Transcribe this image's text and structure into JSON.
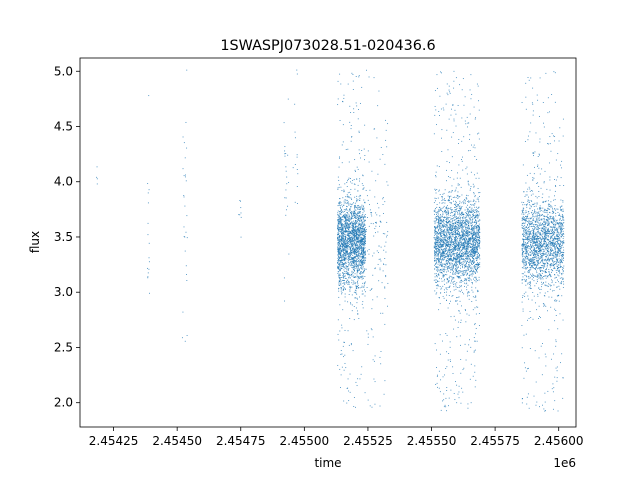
{
  "chart_data": {
    "type": "scatter",
    "title": "1SWASPJ073028.51-020436.6",
    "xlabel": "time",
    "ylabel": "flux",
    "x_offset_label": "1e6",
    "x_ticks": [
      2454250,
      2454500,
      2454750,
      2455000,
      2455250,
      2455500,
      2455750,
      2456000
    ],
    "x_tick_labels": [
      "2.45425",
      "2.45450",
      "2.45475",
      "2.45500",
      "2.45525",
      "2.45550",
      "2.45575",
      "2.45600"
    ],
    "y_ticks": [
      2.0,
      2.5,
      3.0,
      3.5,
      4.0,
      4.5,
      5.0
    ],
    "y_tick_labels": [
      "2.0",
      "2.5",
      "3.0",
      "3.5",
      "4.0",
      "4.5",
      "5.0"
    ],
    "xlim": [
      2454118,
      2456068
    ],
    "ylim": [
      1.78,
      5.12
    ],
    "marker_color": "#1f77b4",
    "grid": false,
    "clusters": [
      {
        "x_start": 2454183,
        "x_end": 2454186,
        "y_center": 4.15,
        "spread": 0.15,
        "count": 4,
        "outlier_fraction": 0.0
      },
      {
        "x_start": 2454383,
        "x_end": 2454391,
        "y_center": 3.45,
        "spread": 0.35,
        "count": 16,
        "outlier_fraction": 0.2
      },
      {
        "x_start": 2454520,
        "x_end": 2454540,
        "y_center": 3.8,
        "spread": 0.35,
        "count": 28,
        "outlier_fraction": 0.4
      },
      {
        "x_start": 2454740,
        "x_end": 2454755,
        "y_center": 3.75,
        "spread": 0.15,
        "count": 8,
        "outlier_fraction": 0.0
      },
      {
        "x_start": 2454920,
        "x_end": 2454940,
        "y_center": 4.05,
        "spread": 0.3,
        "count": 22,
        "outlier_fraction": 0.3
      },
      {
        "x_start": 2454955,
        "x_end": 2454975,
        "y_center": 4.2,
        "spread": 0.35,
        "count": 14,
        "outlier_fraction": 0.3
      },
      {
        "x_start": 2455130,
        "x_end": 2455240,
        "y_center": 3.45,
        "spread": 0.2,
        "count": 2200,
        "outlier_fraction": 0.1
      },
      {
        "x_start": 2455240,
        "x_end": 2455330,
        "y_center": 3.5,
        "spread": 0.3,
        "count": 140,
        "outlier_fraction": 0.5
      },
      {
        "x_start": 2455510,
        "x_end": 2455690,
        "y_center": 3.45,
        "spread": 0.2,
        "count": 2800,
        "outlier_fraction": 0.12
      },
      {
        "x_start": 2455855,
        "x_end": 2456020,
        "y_center": 3.45,
        "spread": 0.2,
        "count": 2000,
        "outlier_fraction": 0.1
      }
    ]
  }
}
